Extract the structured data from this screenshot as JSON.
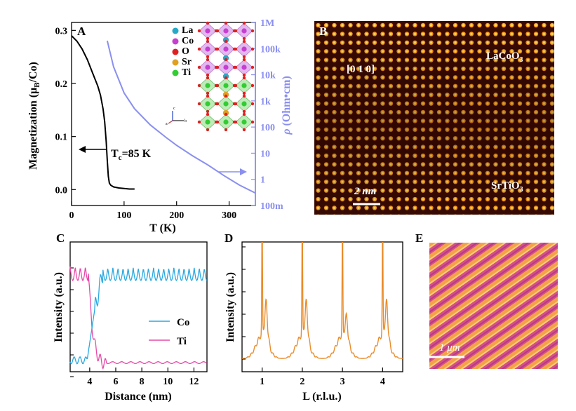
{
  "chart_data": [
    {
      "panel": "A",
      "type": "line",
      "xlabel": "T (K)",
      "ylabel": "Magnetization (μB/Co)",
      "y2label": "ρ (Ohm•cm)",
      "xlim": [
        0,
        350
      ],
      "ylim": [
        -0.03,
        0.315
      ],
      "x_ticks": [
        "0",
        "100",
        "200",
        "300"
      ],
      "y_ticks": [
        "0.0",
        "0.1",
        "0.2",
        "0.3"
      ],
      "y2_ticks": [
        "1M",
        "100k",
        "10k",
        "1k",
        "100",
        "10",
        "1",
        "100m"
      ],
      "y2_scale": "log",
      "y2lim": [
        0.1,
        1000000
      ],
      "annotation": "Tc=85 K",
      "series": [
        {
          "color": "#000000",
          "x": [
            0,
            10,
            20,
            30,
            40,
            50,
            55,
            60,
            63,
            66,
            68,
            70,
            72,
            75,
            80,
            90,
            100,
            110,
            120
          ],
          "y": [
            0.29,
            0.28,
            0.265,
            0.245,
            0.22,
            0.195,
            0.178,
            0.152,
            0.128,
            0.09,
            0.055,
            0.025,
            0.012,
            0.008,
            0.005,
            0.003,
            0.002,
            0.001,
            0.001
          ]
        },
        {
          "color": "#8a8ff0",
          "axis": "right",
          "x": [
            68,
            80,
            100,
            120,
            150,
            180,
            200,
            230,
            260,
            290,
            320,
            350
          ],
          "y": [
            200000,
            20000,
            2000,
            500,
            120,
            40,
            20,
            8,
            3.5,
            1.4,
            0.6,
            0.3
          ]
        }
      ],
      "inset_legend": [
        "La",
        "Co",
        "O",
        "Sr",
        "Ti"
      ],
      "inset_colors": [
        "#26a9c7",
        "#c63fd1",
        "#e02020",
        "#e0a020",
        "#33cc33"
      ],
      "inset_axes": [
        "c",
        "a",
        "b"
      ]
    },
    {
      "panel": "B",
      "type": "image",
      "labels": {
        "direction": "[0 1 0]",
        "top": "LaCoO3",
        "bottom": "SrTiO3",
        "scale": "2 nm"
      }
    },
    {
      "panel": "C",
      "type": "line",
      "xlabel": "Distance (nm)",
      "ylabel": "Intensity (a.u.)",
      "xlim": [
        2.5,
        13
      ],
      "x_ticks": [
        "4",
        "6",
        "8",
        "10",
        "12"
      ],
      "series": [
        {
          "name": "Co",
          "color": "#2aa8e0"
        },
        {
          "name": "Ti",
          "color": "#e64aa8"
        }
      ]
    },
    {
      "panel": "D",
      "type": "line",
      "xlabel": "L (r.l.u.)",
      "ylabel": "Intensity (a.u.)",
      "xlim": [
        0.5,
        4.5
      ],
      "x_ticks": [
        "1",
        "2",
        "3",
        "4"
      ],
      "peaks": [
        1,
        2,
        3,
        4
      ],
      "series": [
        {
          "color": "#e98c2b"
        }
      ]
    },
    {
      "panel": "E",
      "type": "image",
      "labels": {
        "scale": "1 μm"
      }
    }
  ]
}
